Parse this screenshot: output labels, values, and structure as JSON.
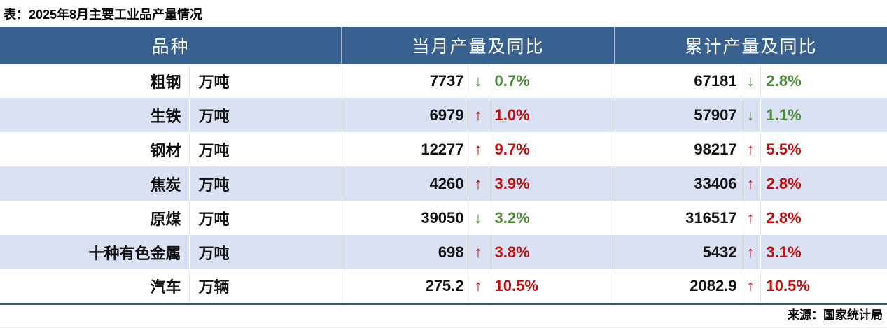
{
  "title": "表：2025年8月主要工业品产量情况",
  "source": "来源：国家统计局",
  "icons": {
    "up": "↑",
    "down": "↓"
  },
  "colors": {
    "header_bg": "#386190",
    "header_text": "#FFFFFF",
    "alt_row_bg": "#D9E1F2",
    "up": "#C40C0C",
    "down": "#4D8B3B",
    "table_bottom_border": "#2F5B8C"
  },
  "chart_data": {
    "type": "table",
    "title": "表：2025年8月主要工业品产量情况",
    "source": "来源：国家统计局",
    "columns": [
      "品种",
      "当月产量及同比",
      "累计产量及同比"
    ],
    "rows": [
      {
        "name": "粗钢",
        "unit": "万吨",
        "month": {
          "value": "7737",
          "dir": "down",
          "pct": "0.7%"
        },
        "cum": {
          "value": "67181",
          "dir": "down",
          "pct": "2.8%"
        }
      },
      {
        "name": "生铁",
        "unit": "万吨",
        "month": {
          "value": "6979",
          "dir": "up",
          "pct": "1.0%"
        },
        "cum": {
          "value": "57907",
          "dir": "down",
          "pct": "1.1%"
        }
      },
      {
        "name": "钢材",
        "unit": "万吨",
        "month": {
          "value": "12277",
          "dir": "up",
          "pct": "9.7%"
        },
        "cum": {
          "value": "98217",
          "dir": "up",
          "pct": "5.5%"
        }
      },
      {
        "name": "焦炭",
        "unit": "万吨",
        "month": {
          "value": "4260",
          "dir": "up",
          "pct": "3.9%"
        },
        "cum": {
          "value": "33406",
          "dir": "up",
          "pct": "2.8%"
        }
      },
      {
        "name": "原煤",
        "unit": "万吨",
        "month": {
          "value": "39050",
          "dir": "down",
          "pct": "3.2%"
        },
        "cum": {
          "value": "316517",
          "dir": "up",
          "pct": "2.8%"
        }
      },
      {
        "name": "十种有色金属",
        "unit": "万吨",
        "month": {
          "value": "698",
          "dir": "up",
          "pct": "3.8%"
        },
        "cum": {
          "value": "5432",
          "dir": "up",
          "pct": "3.1%"
        }
      },
      {
        "name": "汽车",
        "unit": "万辆",
        "month": {
          "value": "275.2",
          "dir": "up",
          "pct": "10.5%"
        },
        "cum": {
          "value": "2082.9",
          "dir": "up",
          "pct": "10.5%"
        }
      }
    ]
  }
}
